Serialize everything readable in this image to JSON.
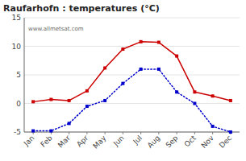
{
  "chart_data": {
    "type": "line",
    "title": "Raufarhofn : temperatures (°C)",
    "categories": [
      "Jan",
      "Feb",
      "Mar",
      "Apr",
      "May",
      "Jun",
      "Jul",
      "Aug",
      "Sep",
      "Oct",
      "Nov",
      "Dec"
    ],
    "series": [
      {
        "color": "#cc0000",
        "marker": "square",
        "line_style": "solid",
        "values": [
          0.3,
          0.7,
          0.5,
          2.2,
          6.2,
          9.5,
          10.8,
          10.7,
          8.3,
          2.0,
          1.3,
          0.5
        ]
      },
      {
        "color": "#0000cc",
        "marker": "square",
        "line_style": "dotted",
        "values": [
          -4.8,
          -4.8,
          -3.5,
          -0.5,
          0.5,
          3.5,
          6.0,
          6.0,
          2.0,
          0.0,
          -4.0,
          -5.0
        ]
      }
    ],
    "ylim": [
      -5,
      15
    ],
    "yticks": [
      -5,
      0,
      5,
      10,
      15
    ],
    "grid": true,
    "annotations": [
      "www.allmetsat.com"
    ]
  }
}
